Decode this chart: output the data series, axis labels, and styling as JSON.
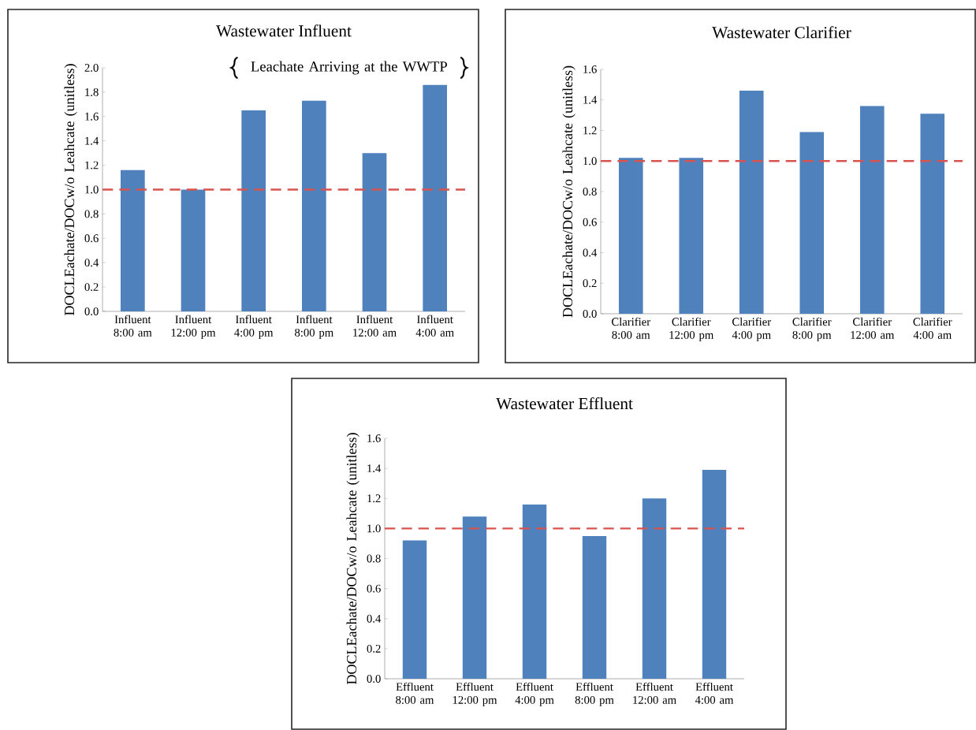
{
  "chart_data": [
    {
      "type": "bar",
      "title": "Wastewater  Influent",
      "ylabel": "DOCLEachate/DOCw/o Leahcate (unitless)",
      "categories": [
        "Influent 8:00 am",
        "Influent 12:00 pm",
        "Influent 4:00 pm",
        "Influent 8:00 pm",
        "Influent 12:00 am",
        "Influent 4:00 am"
      ],
      "values": [
        1.16,
        1.0,
        1.65,
        1.73,
        1.3,
        1.86
      ],
      "color": "#4f81bd",
      "ylim": [
        0,
        2
      ],
      "yticks": [
        {
          "value": 0,
          "label": "0.0"
        },
        {
          "value": 0.2,
          "label": "0.2"
        },
        {
          "value": 0.4,
          "label": "0.4"
        },
        {
          "value": 0.6,
          "label": "0.6"
        },
        {
          "value": 0.8,
          "label": "0.8"
        },
        {
          "value": 1,
          "label": "1.0"
        },
        {
          "value": 1.2,
          "label": "1.2"
        },
        {
          "value": 1.4,
          "label": "1.4"
        },
        {
          "value": 1.6,
          "label": "1.6"
        },
        {
          "value": 1.8,
          "label": "1.8"
        },
        {
          "value": 2,
          "label": "2.0"
        }
      ],
      "ref_lines": [
        {
          "axis": "y",
          "value": 1,
          "color": "#d9534f",
          "line_style": "dashed"
        }
      ],
      "annotations": [
        "Leachate Arriving at the WWTP"
      ]
    },
    {
      "type": "bar",
      "title": "Wastewater Clarifier",
      "ylabel": "DOCLEachate/DOCw/o Leahcate (unitless)",
      "categories": [
        "Clarifier 8:00 am",
        "Clarifier 12:00 pm",
        "Clarifier 4:00 pm",
        "Clarifier 8:00 pm",
        "Clarifier 12:00 am",
        "Clarifier 4:00 am"
      ],
      "values": [
        1.02,
        1.02,
        1.46,
        1.19,
        1.36,
        1.31
      ],
      "color": "#4f81bd",
      "ylim": [
        0,
        1.6
      ],
      "yticks": [
        {
          "value": 0,
          "label": "0.0"
        },
        {
          "value": 0.2,
          "label": "0.2"
        },
        {
          "value": 0.4,
          "label": "0.4"
        },
        {
          "value": 0.6,
          "label": "0.6"
        },
        {
          "value": 0.8,
          "label": "0.8"
        },
        {
          "value": 1,
          "label": "1.0"
        },
        {
          "value": 1.2,
          "label": "1.2"
        },
        {
          "value": 1.4,
          "label": "1.4"
        },
        {
          "value": 1.6,
          "label": "1.6"
        }
      ],
      "ref_lines": [
        {
          "axis": "y",
          "value": 1,
          "color": "#d9534f",
          "line_style": "dashed"
        }
      ]
    },
    {
      "type": "bar",
      "title": "Wastewater  Effluent",
      "ylabel": "DOCLEachate/DOCw/o Leahcate (unitless)",
      "categories": [
        "Effluent 8:00 am",
        "Effluent 12:00 pm",
        "Effluent 4:00 pm",
        "Effluent 8:00 pm",
        "Effluent 12:00 am",
        "Effluent 4:00 am"
      ],
      "values": [
        0.92,
        1.08,
        1.16,
        0.95,
        1.2,
        1.39
      ],
      "color": "#4f81bd",
      "ylim": [
        0,
        1.6
      ],
      "yticks": [
        {
          "value": 0,
          "label": "0.0"
        },
        {
          "value": 0.2,
          "label": "0.2"
        },
        {
          "value": 0.4,
          "label": "0.4"
        },
        {
          "value": 0.6,
          "label": "0.6"
        },
        {
          "value": 0.8,
          "label": "0.8"
        },
        {
          "value": 1,
          "label": "1.0"
        },
        {
          "value": 1.2,
          "label": "1.2"
        },
        {
          "value": 1.4,
          "label": "1.4"
        },
        {
          "value": 1.6,
          "label": "1.6"
        }
      ],
      "ref_lines": [
        {
          "axis": "y",
          "value": 1,
          "color": "#d9534f",
          "line_style": "dashed"
        }
      ]
    }
  ]
}
